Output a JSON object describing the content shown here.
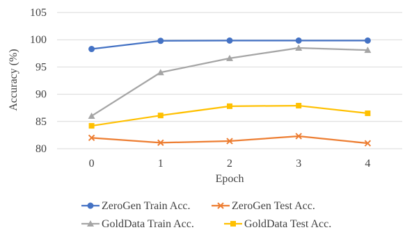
{
  "chart_data": {
    "type": "line",
    "title": "",
    "xlabel": "Epoch",
    "ylabel": "Accuracy (%)",
    "x": [
      0,
      1,
      2,
      3,
      4
    ],
    "x_tick_labels": [
      "0",
      "1",
      "2",
      "3",
      "4"
    ],
    "ylim": [
      80,
      105
    ],
    "y_ticks": [
      80,
      85,
      90,
      95,
      100,
      105
    ],
    "grid": "horizontal",
    "legend_position": "bottom",
    "series": [
      {
        "name": "ZeroGen Train Acc.",
        "color": "#4472c4",
        "marker": "circle",
        "values": [
          98.3,
          99.8,
          99.85,
          99.85,
          99.85
        ]
      },
      {
        "name": "ZeroGen Test Acc.",
        "color": "#ed7d31",
        "marker": "x",
        "values": [
          82.0,
          81.1,
          81.4,
          82.3,
          81.0
        ]
      },
      {
        "name": "GoldData Train Acc.",
        "color": "#a5a5a5",
        "marker": "triangle",
        "values": [
          86.0,
          94.0,
          96.6,
          98.5,
          98.1
        ]
      },
      {
        "name": "GoldData Test Acc.",
        "color": "#ffc000",
        "marker": "square",
        "values": [
          84.2,
          86.1,
          87.8,
          87.9,
          86.5
        ]
      }
    ]
  }
}
